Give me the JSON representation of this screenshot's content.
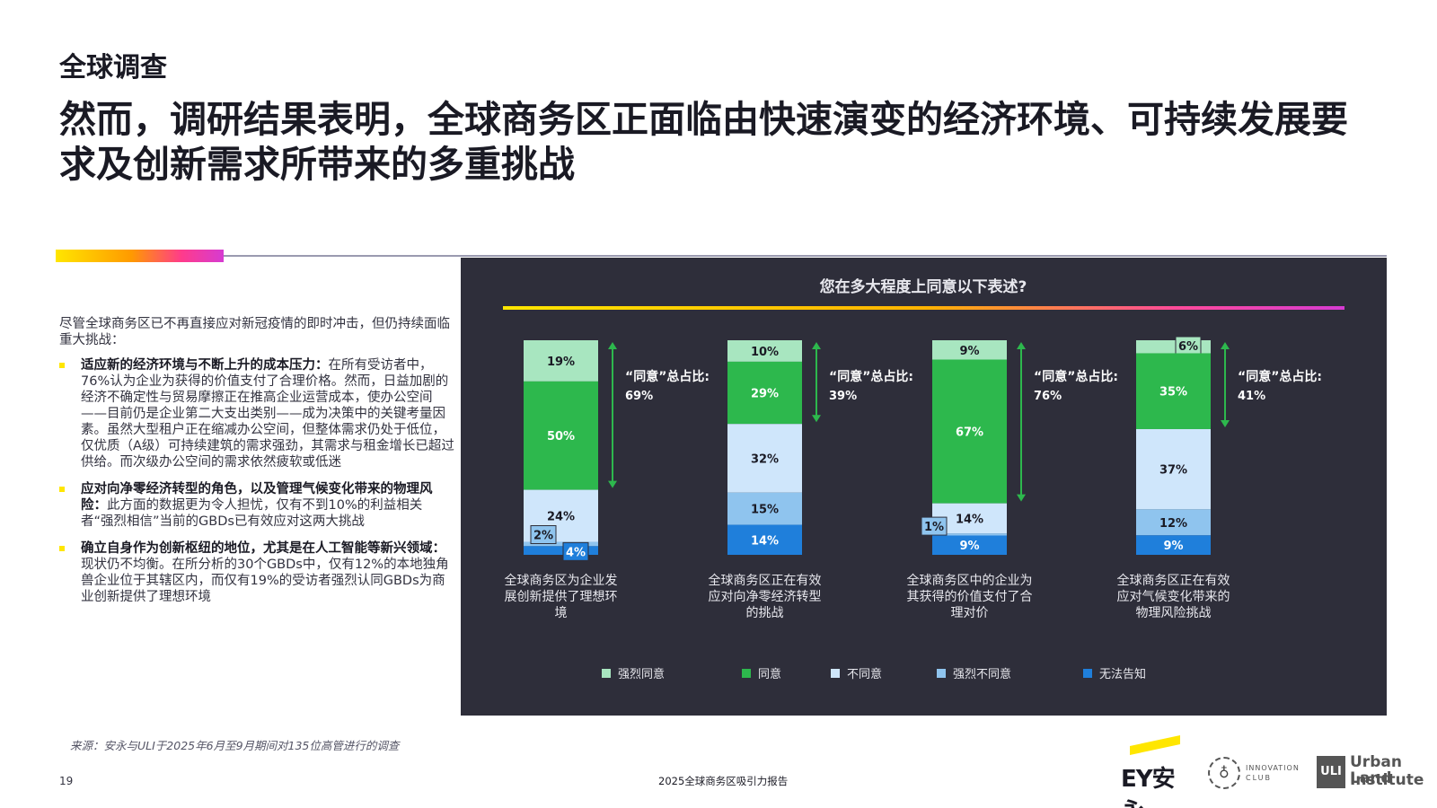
{
  "header": {
    "section_label": "全球调查",
    "headline": "然而，调研结果表明，全球商务区正面临由快速演变的经济环境、可持续发展要求及创新需求所带来的多重挑战"
  },
  "body": {
    "intro": "尽管全球商务区已不再直接应对新冠疫情的即时冲击，但仍持续面临重大挑战：",
    "bullets": [
      {
        "title": "适应新的经济环境与不断上升的成本压力：",
        "text": "在所有受访者中，76%认为企业为获得的价值支付了合理价格。然而，日益加剧的经济不确定性与贸易摩擦正在推高企业运营成本，使办公空间——目前仍是企业第二大支出类别——成为决策中的关键考量因素。虽然大型租户正在缩减办公空间，但整体需求仍处于低位，仅优质（A级）可持续建筑的需求强劲，其需求与租金增长已超过供给。而次级办公空间的需求依然疲软或低迷"
      },
      {
        "title": "应对向净零经济转型的角色，以及管理气候变化带来的物理风险：",
        "text": "此方面的数据更为令人担忧，仅有不到10%的利益相关者“强烈相信”当前的GBDs已有效应对这两大挑战"
      },
      {
        "title": "确立自身作为创新枢纽的地位，尤其是在人工智能等新兴领域：",
        "text": "现状仍不均衡。在所分析的30个GBDs中，仅有12%的本地独角兽企业位于其辖区内，而仅有19%的受访者强烈认同GBDs为商业创新提供了理想环境"
      }
    ]
  },
  "footer": {
    "source": "来源：安永与ULI于2025年6月至9月期间对135位高管进行的调查",
    "page_number": "19",
    "report_title": "2025全球商务区吸引力报告",
    "logos": {
      "ey_text": "EY安永",
      "innovation_line1": "INNOVATION",
      "innovation_line2": "CLUB",
      "uli_box": "ULI",
      "uli_line1": "Urban Land",
      "uli_line2": "Institute"
    }
  },
  "chart_data": {
    "type": "bar",
    "stacked": true,
    "orientation": "vertical",
    "title": "您在多大程度上同意以下表述?",
    "categories": [
      "全球商务区为企业发展创新提供了理想环境",
      "全球商务区正在有效应对向净零经济转型的挑战",
      "全球商务区中的企业为其获得的价值支付了合理对价",
      "全球商务区正在有效应对气候变化带来的物理风险挑战"
    ],
    "category_lines": [
      [
        "全球商务区为企业发",
        "展创新提供了理想环",
        "境"
      ],
      [
        "全球商务区正在有效",
        "应对向净零经济转型",
        "的挑战"
      ],
      [
        "全球商务区中的企业为",
        "其获得的价值支付了合",
        "理对价"
      ],
      [
        "全球商务区正在有效",
        "应对气候变化带来的",
        "物理风险挑战"
      ]
    ],
    "series": [
      {
        "name": "强烈同意",
        "color": "#a8e6c0",
        "values": [
          19,
          10,
          9,
          6
        ]
      },
      {
        "name": "同意",
        "color": "#2db84d",
        "values": [
          50,
          29,
          67,
          35
        ]
      },
      {
        "name": "不同意",
        "color": "#cfe6fb",
        "values": [
          24,
          32,
          14,
          37
        ]
      },
      {
        "name": "强烈不同意",
        "color": "#8fc4ee",
        "values": [
          2,
          15,
          1,
          12
        ]
      },
      {
        "name": "无法告知",
        "color": "#1f7fdb",
        "values": [
          4,
          14,
          9,
          9
        ]
      }
    ],
    "agree_total_label": "“同意”总占比:",
    "agree_totals": [
      "69%",
      "39%",
      "76%",
      "41%"
    ],
    "ylim": [
      0,
      100
    ],
    "legend_position": "bottom",
    "grid": false
  }
}
